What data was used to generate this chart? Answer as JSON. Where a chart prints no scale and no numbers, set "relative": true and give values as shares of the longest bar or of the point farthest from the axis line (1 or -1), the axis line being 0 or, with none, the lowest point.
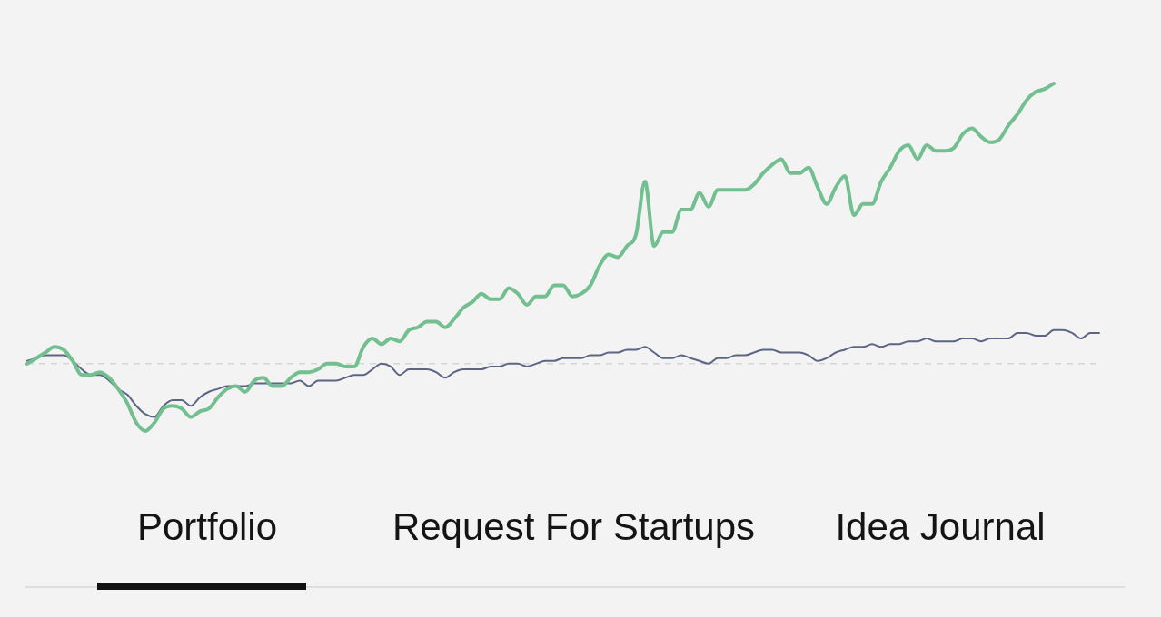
{
  "chart_data": {
    "type": "line",
    "relative": true,
    "categories": [
      null,
      null,
      null,
      null,
      null,
      null,
      null,
      null,
      null,
      null,
      null,
      null,
      null,
      null,
      null,
      null,
      null,
      null,
      null,
      null,
      null,
      null,
      null,
      null,
      null,
      null,
      null,
      null,
      null,
      null,
      null,
      null,
      null,
      null,
      null,
      null,
      null,
      null,
      null,
      null,
      null,
      null,
      null,
      null,
      null,
      null,
      null,
      null,
      null,
      null,
      null,
      null,
      null,
      null,
      null,
      null,
      null,
      null,
      null,
      null,
      null,
      null,
      null,
      null,
      null,
      null,
      null,
      null,
      null,
      null,
      null,
      null,
      null,
      null,
      null,
      null,
      null,
      null,
      null,
      null,
      null,
      null,
      null,
      null,
      null,
      null,
      null,
      null,
      null,
      null,
      null,
      null,
      null,
      null,
      null,
      null,
      null,
      null,
      null,
      null,
      null,
      null,
      null,
      null,
      null,
      null,
      null,
      null,
      null,
      null,
      null,
      null,
      null,
      null,
      null,
      null,
      null,
      null,
      null
    ],
    "series": [
      {
        "color": "#72bf8f",
        "values": [
          0.0,
          0.02,
          0.04,
          0.06,
          0.05,
          0.01,
          -0.04,
          -0.04,
          -0.03,
          -0.05,
          -0.09,
          -0.14,
          -0.21,
          -0.24,
          -0.21,
          -0.16,
          -0.15,
          -0.16,
          -0.19,
          -0.17,
          -0.16,
          -0.12,
          -0.09,
          -0.08,
          -0.1,
          -0.06,
          -0.05,
          -0.08,
          -0.08,
          -0.05,
          -0.03,
          -0.03,
          -0.02,
          0.0,
          0.0,
          -0.01,
          -0.01,
          0.06,
          0.09,
          0.07,
          0.09,
          0.08,
          0.12,
          0.13,
          0.15,
          0.15,
          0.13,
          0.16,
          0.2,
          0.22,
          0.25,
          0.23,
          0.23,
          0.27,
          0.25,
          0.21,
          0.24,
          0.24,
          0.28,
          0.28,
          0.24,
          0.25,
          0.28,
          0.35,
          0.39,
          0.38,
          0.42,
          0.46,
          0.65,
          0.42,
          0.47,
          0.47,
          0.55,
          0.55,
          0.61,
          0.56,
          0.62,
          0.62,
          0.62,
          0.62,
          0.64,
          0.68,
          0.71,
          0.73,
          0.68,
          0.68,
          0.7,
          0.63,
          0.57,
          0.63,
          0.67,
          0.53,
          0.57,
          0.57,
          0.65,
          0.7,
          0.76,
          0.78,
          0.73,
          0.78,
          0.76,
          0.76,
          0.77,
          0.82,
          0.84,
          0.81,
          0.79,
          0.8,
          0.85,
          0.89,
          0.94,
          0.97,
          0.98,
          1.0,
          null,
          null,
          null,
          null,
          null
        ]
      },
      {
        "color": "#5d6585",
        "values": [
          0.01,
          0.02,
          0.03,
          0.03,
          0.03,
          0.01,
          -0.02,
          -0.04,
          -0.04,
          -0.06,
          -0.09,
          -0.11,
          -0.15,
          -0.18,
          -0.19,
          -0.15,
          -0.13,
          -0.13,
          -0.15,
          -0.12,
          -0.1,
          -0.09,
          -0.08,
          -0.08,
          -0.08,
          -0.07,
          -0.07,
          -0.07,
          -0.07,
          -0.07,
          -0.06,
          -0.08,
          -0.06,
          -0.06,
          -0.06,
          -0.05,
          -0.04,
          -0.04,
          -0.02,
          0.0,
          -0.01,
          -0.04,
          -0.02,
          -0.02,
          -0.02,
          -0.03,
          -0.05,
          -0.03,
          -0.02,
          -0.02,
          -0.02,
          -0.01,
          -0.01,
          0.0,
          0.0,
          -0.01,
          0.0,
          0.01,
          0.01,
          0.02,
          0.02,
          0.02,
          0.03,
          0.03,
          0.04,
          0.04,
          0.05,
          0.05,
          0.06,
          0.04,
          0.02,
          0.02,
          0.03,
          0.02,
          0.01,
          0.0,
          0.02,
          0.02,
          0.03,
          0.03,
          0.04,
          0.05,
          0.05,
          0.04,
          0.04,
          0.04,
          0.03,
          0.01,
          0.02,
          0.04,
          0.05,
          0.06,
          0.06,
          0.07,
          0.06,
          0.07,
          0.07,
          0.08,
          0.08,
          0.09,
          0.08,
          0.08,
          0.08,
          0.09,
          0.09,
          0.08,
          0.09,
          0.09,
          0.09,
          0.11,
          0.11,
          0.1,
          0.1,
          0.12,
          0.12,
          0.11,
          0.09,
          0.11,
          0.11
        ]
      }
    ],
    "ref_lines": [
      {
        "axis": "y",
        "value": 0,
        "color": "#d6d6d6",
        "line_style": "dashed"
      }
    ],
    "annotations": [
      "Portfolio",
      "Request For Startups",
      "Idea Journal"
    ]
  }
}
